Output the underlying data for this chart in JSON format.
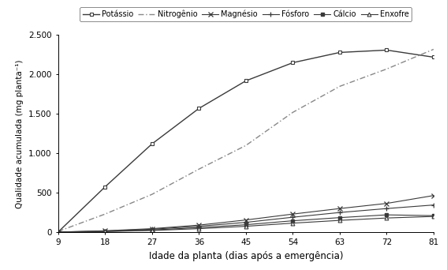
{
  "x": [
    9,
    18,
    27,
    36,
    45,
    54,
    63,
    72,
    81
  ],
  "potassio": [
    2,
    575,
    1120,
    1570,
    1920,
    2150,
    2280,
    2310,
    2220
  ],
  "nitrogenio": [
    10,
    230,
    480,
    800,
    1100,
    1520,
    1850,
    2070,
    2320
  ],
  "magnesio": [
    2,
    18,
    45,
    90,
    155,
    230,
    300,
    365,
    465
  ],
  "fosforo": [
    2,
    15,
    38,
    75,
    125,
    190,
    250,
    300,
    345
  ],
  "calcio": [
    2,
    10,
    28,
    58,
    95,
    145,
    185,
    220,
    210
  ],
  "enxofre": [
    2,
    8,
    22,
    45,
    75,
    115,
    150,
    180,
    200
  ],
  "xlabel": "Idade da planta (dias após a emergência)",
  "ylabel": "Qualidade acumulada (mg planta⁻¹)",
  "ylim": [
    0,
    2500
  ],
  "yticks": [
    0,
    500,
    1000,
    1500,
    2000,
    2500
  ],
  "ytick_labels": [
    "0",
    "500",
    "1.000",
    "1.500",
    "2.000",
    "2.500"
  ],
  "xticks": [
    9,
    18,
    27,
    36,
    45,
    54,
    63,
    72,
    81
  ],
  "color_dark": "#3a3a3a",
  "color_light": "#888888",
  "legend_labels": [
    "Potássio",
    "Nitrogênio",
    "Magnésio",
    "Fósforo",
    "Cálcio",
    "Enxofre"
  ]
}
